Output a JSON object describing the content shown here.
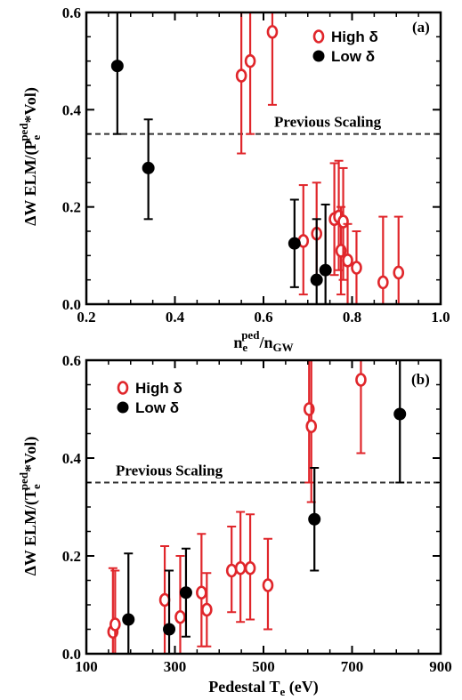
{
  "colors": {
    "high": "#e0262b",
    "low": "#000000",
    "frame": "#000000",
    "ref_line": "#333333"
  },
  "chart_data": [
    {
      "type": "scatter",
      "panel_label": "(a)",
      "xlabel": {
        "main": "n",
        "sub": "e",
        "sup": "ped",
        "rest_main": "/n",
        "rest_sub": "GW"
      },
      "ylabel": {
        "prefix": "ΔW ELM/(P",
        "sub": "e",
        "sup": "ped",
        "suffix": "*Vol)"
      },
      "xlim": [
        0.2,
        1.0
      ],
      "ylim": [
        0.0,
        0.6
      ],
      "xticks": [
        0.2,
        0.4,
        0.6,
        0.8,
        1.0
      ],
      "xtick_labels": [
        "0.2",
        "0.4",
        "0.6",
        "0.8",
        "1.0"
      ],
      "yticks": [
        0.0,
        0.2,
        0.4,
        0.6
      ],
      "ytick_labels": [
        "0.0",
        "0.2",
        "0.4",
        "0.6"
      ],
      "reference_line": {
        "y": 0.35,
        "label": "Previous Scaling"
      },
      "legend_position": "top-right",
      "series": [
        {
          "name": "High δ",
          "marker": "open-circle",
          "color_key": "high",
          "points": [
            {
              "x": 0.55,
              "y": 0.47,
              "lo": 0.31,
              "hi": 0.6
            },
            {
              "x": 0.57,
              "y": 0.5,
              "lo": 0.35,
              "hi": 0.6
            },
            {
              "x": 0.62,
              "y": 0.56,
              "lo": 0.41,
              "hi": 0.6
            },
            {
              "x": 0.69,
              "y": 0.13,
              "lo": 0.02,
              "hi": 0.245
            },
            {
              "x": 0.72,
              "y": 0.145,
              "lo": 0.05,
              "hi": 0.25
            },
            {
              "x": 0.76,
              "y": 0.175,
              "lo": 0.06,
              "hi": 0.29
            },
            {
              "x": 0.77,
              "y": 0.18,
              "lo": 0.07,
              "hi": 0.295
            },
            {
              "x": 0.775,
              "y": 0.11,
              "lo": 0.02,
              "hi": 0.2
            },
            {
              "x": 0.78,
              "y": 0.17,
              "lo": 0.05,
              "hi": 0.28
            },
            {
              "x": 0.79,
              "y": 0.09,
              "lo": 0.0,
              "hi": 0.165
            },
            {
              "x": 0.81,
              "y": 0.075,
              "lo": 0.0,
              "hi": 0.15
            },
            {
              "x": 0.87,
              "y": 0.045,
              "lo": 0.0,
              "hi": 0.18
            },
            {
              "x": 0.905,
              "y": 0.065,
              "lo": 0.0,
              "hi": 0.18
            }
          ]
        },
        {
          "name": "Low δ",
          "marker": "filled-circle",
          "color_key": "low",
          "points": [
            {
              "x": 0.27,
              "y": 0.49,
              "lo": 0.35,
              "hi": 0.6
            },
            {
              "x": 0.34,
              "y": 0.28,
              "lo": 0.175,
              "hi": 0.38
            },
            {
              "x": 0.67,
              "y": 0.125,
              "lo": 0.035,
              "hi": 0.215
            },
            {
              "x": 0.72,
              "y": 0.05,
              "lo": 0.0,
              "hi": 0.175
            },
            {
              "x": 0.74,
              "y": 0.07,
              "lo": 0.0,
              "hi": 0.205
            }
          ]
        }
      ]
    },
    {
      "type": "scatter",
      "panel_label": "(b)",
      "xlabel": {
        "main": "Pedestal T",
        "sub": "e",
        "rest_main": " (eV)"
      },
      "ylabel": {
        "prefix": "ΔW ELM/(T",
        "sub": "e",
        "sup": "ped",
        "suffix": "*Vol)"
      },
      "xlim": [
        100,
        900
      ],
      "ylim": [
        0.0,
        0.6
      ],
      "xticks": [
        100,
        300,
        500,
        700,
        900
      ],
      "xtick_labels": [
        "100",
        "300",
        "500",
        "700",
        "900"
      ],
      "yticks": [
        0.0,
        0.2,
        0.4,
        0.6
      ],
      "ytick_labels": [
        "0.0",
        "0.2",
        "0.4",
        "0.6"
      ],
      "reference_line": {
        "y": 0.35,
        "label": "Previous Scaling"
      },
      "legend_position": "top-left",
      "series": [
        {
          "name": "High δ",
          "marker": "open-circle",
          "color_key": "high",
          "points": [
            {
              "x": 160,
              "y": 0.045,
              "lo": 0.0,
              "hi": 0.175
            },
            {
              "x": 165,
              "y": 0.06,
              "lo": 0.0,
              "hi": 0.17
            },
            {
              "x": 277,
              "y": 0.11,
              "lo": 0.0,
              "hi": 0.22
            },
            {
              "x": 312,
              "y": 0.075,
              "lo": 0.0,
              "hi": 0.2
            },
            {
              "x": 360,
              "y": 0.125,
              "lo": 0.015,
              "hi": 0.245
            },
            {
              "x": 372,
              "y": 0.09,
              "lo": 0.015,
              "hi": 0.165
            },
            {
              "x": 428,
              "y": 0.17,
              "lo": 0.085,
              "hi": 0.26
            },
            {
              "x": 448,
              "y": 0.175,
              "lo": 0.065,
              "hi": 0.29
            },
            {
              "x": 470,
              "y": 0.175,
              "lo": 0.07,
              "hi": 0.285
            },
            {
              "x": 510,
              "y": 0.14,
              "lo": 0.05,
              "hi": 0.235
            },
            {
              "x": 603,
              "y": 0.5,
              "lo": 0.35,
              "hi": 0.6
            },
            {
              "x": 608,
              "y": 0.465,
              "lo": 0.31,
              "hi": 0.6
            },
            {
              "x": 720,
              "y": 0.56,
              "lo": 0.41,
              "hi": 0.6
            }
          ]
        },
        {
          "name": "Low δ",
          "marker": "filled-circle",
          "color_key": "low",
          "points": [
            {
              "x": 195,
              "y": 0.07,
              "lo": 0.0,
              "hi": 0.205
            },
            {
              "x": 287,
              "y": 0.05,
              "lo": 0.0,
              "hi": 0.17
            },
            {
              "x": 325,
              "y": 0.125,
              "lo": 0.035,
              "hi": 0.215
            },
            {
              "x": 615,
              "y": 0.275,
              "lo": 0.17,
              "hi": 0.38
            },
            {
              "x": 808,
              "y": 0.49,
              "lo": 0.35,
              "hi": 0.6
            }
          ]
        }
      ]
    }
  ]
}
